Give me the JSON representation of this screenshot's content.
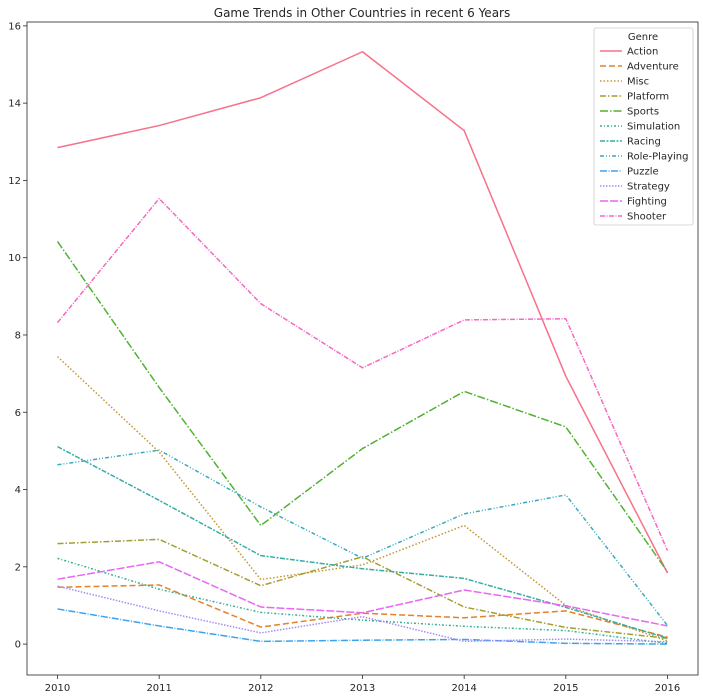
{
  "chart_data": {
    "type": "line",
    "title": "Game Trends in Other Countries in recent 6 Years",
    "xlabel": "",
    "ylabel": "",
    "x": [
      2010,
      2011,
      2012,
      2013,
      2014,
      2015,
      2016
    ],
    "xticks": [
      "2010",
      "2011",
      "2012",
      "2013",
      "2014",
      "2015",
      "2016"
    ],
    "yticks": [
      "0",
      "2",
      "4",
      "6",
      "8",
      "10",
      "12",
      "14",
      "16"
    ],
    "xlim": [
      2009.7,
      2016.3
    ],
    "ylim": [
      -0.8,
      16.1
    ],
    "grid": false,
    "legend": {
      "title": "Genre",
      "position": "top-right"
    },
    "series": [
      {
        "name": "Action",
        "color": "#f77189",
        "dash": "",
        "values": [
          12.85,
          13.42,
          14.14,
          15.33,
          13.29,
          6.93,
          1.84
        ]
      },
      {
        "name": "Adventure",
        "color": "#e5802b",
        "dash": "6,3",
        "values": [
          1.47,
          1.53,
          0.44,
          0.8,
          0.68,
          0.86,
          0.18
        ]
      },
      {
        "name": "Misc",
        "color": "#c39532",
        "dash": "1.5,2",
        "values": [
          7.44,
          4.97,
          1.67,
          2.05,
          3.07,
          1.0,
          0.08
        ]
      },
      {
        "name": "Platform",
        "color": "#a39e31",
        "dash": "6,2,1.5,2",
        "values": [
          2.6,
          2.71,
          1.51,
          2.26,
          0.96,
          0.43,
          0.15
        ]
      },
      {
        "name": "Sports",
        "color": "#50b131",
        "dash": "8,2,1.5,2",
        "values": [
          10.42,
          6.64,
          3.07,
          5.06,
          6.54,
          5.62,
          1.87
        ]
      },
      {
        "name": "Simulation",
        "color": "#33ae91",
        "dash": "2,2,1,2",
        "values": [
          2.22,
          1.42,
          0.82,
          0.62,
          0.46,
          0.35,
          0.02
        ]
      },
      {
        "name": "Racing",
        "color": "#36ada4",
        "dash": "5,1.5,2,1.5",
        "values": [
          5.11,
          3.72,
          2.29,
          1.95,
          1.7,
          0.95,
          0.15
        ]
      },
      {
        "name": "Role-Playing",
        "color": "#38aabf",
        "dash": "4,2,1,2,1,2",
        "values": [
          4.64,
          5.02,
          3.55,
          2.22,
          3.37,
          3.86,
          0.48
        ]
      },
      {
        "name": "Puzzle",
        "color": "#3ba3ec",
        "dash": "7,1.5,1,1.5",
        "values": [
          0.91,
          0.47,
          0.07,
          0.1,
          0.12,
          0.02,
          0.0
        ]
      },
      {
        "name": "Strategy",
        "color": "#a48cf4",
        "dash": "1.5,1.5",
        "values": [
          1.5,
          0.86,
          0.29,
          0.71,
          0.07,
          0.13,
          0.06
        ]
      },
      {
        "name": "Fighting",
        "color": "#e867f4",
        "dash": "8,2",
        "values": [
          1.68,
          2.13,
          0.96,
          0.81,
          1.4,
          0.99,
          0.47
        ]
      },
      {
        "name": "Shooter",
        "color": "#f668c2",
        "dash": "5,1.5,1,1.5",
        "values": [
          8.32,
          11.53,
          8.81,
          7.15,
          8.39,
          8.42,
          2.42
        ]
      }
    ]
  }
}
